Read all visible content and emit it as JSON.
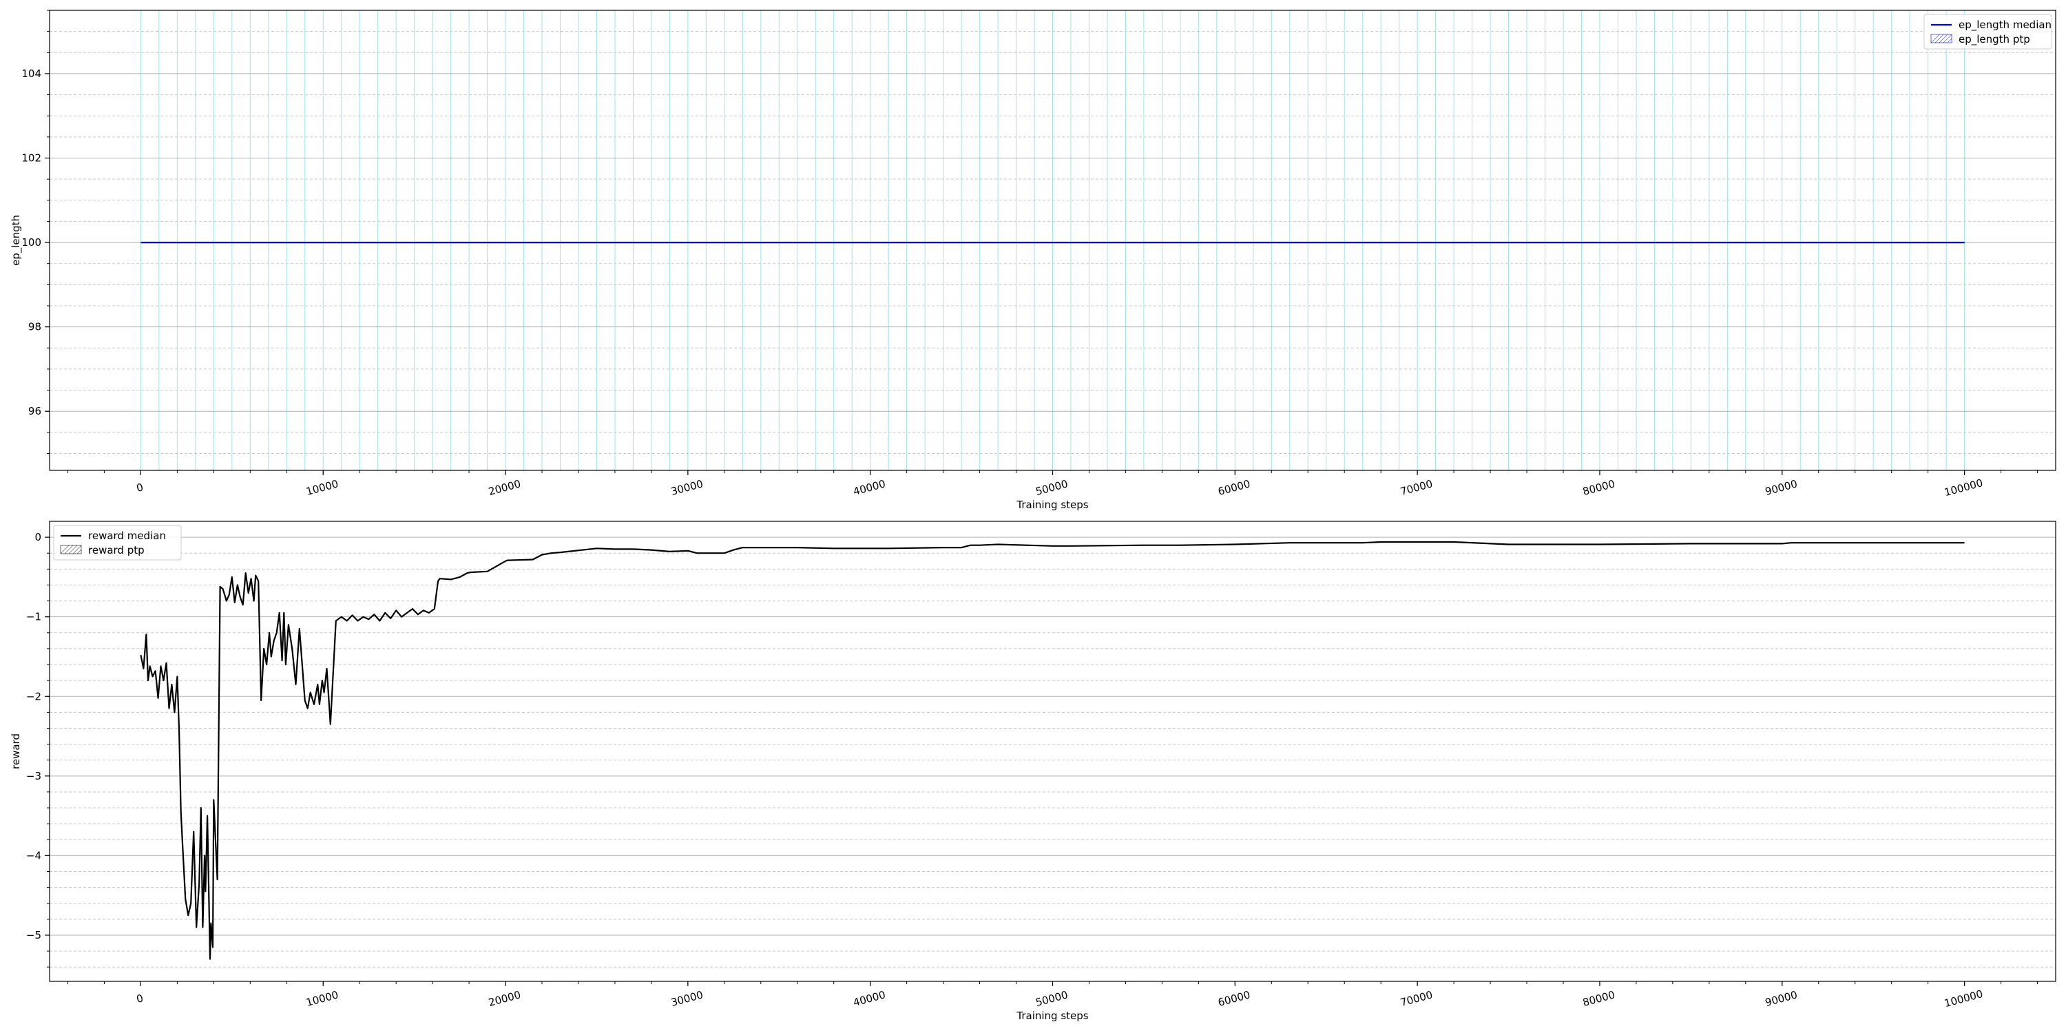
{
  "chart_data": [
    {
      "type": "line",
      "xlabel": "Training steps",
      "ylabel": "ep_length",
      "xlim": [
        -5000,
        105000
      ],
      "ylim": [
        94.6,
        105.5
      ],
      "xticks": [
        0,
        10000,
        20000,
        30000,
        40000,
        50000,
        60000,
        70000,
        80000,
        90000,
        100000
      ],
      "xtick_labels": [
        "0",
        "10000",
        "20000",
        "30000",
        "40000",
        "50000",
        "60000",
        "70000",
        "80000",
        "90000",
        "100000"
      ],
      "yticks": [
        96,
        98,
        100,
        102,
        104
      ],
      "ytick_labels": [
        "96",
        "98",
        "100",
        "102",
        "104"
      ],
      "grid": true,
      "legend_position": "upper right",
      "legend": [
        "ep_length median",
        "ep_length ptp"
      ],
      "series": [
        {
          "name": "ep_length median",
          "color": "#0000cc",
          "x": [
            0,
            100000
          ],
          "y": [
            100,
            100
          ]
        }
      ]
    },
    {
      "type": "line",
      "xlabel": "Training steps",
      "ylabel": "reward",
      "xlim": [
        -5000,
        105000
      ],
      "ylim": [
        -5.58,
        0.2
      ],
      "xticks": [
        0,
        10000,
        20000,
        30000,
        40000,
        50000,
        60000,
        70000,
        80000,
        90000,
        100000
      ],
      "xtick_labels": [
        "0",
        "10000",
        "20000",
        "30000",
        "40000",
        "50000",
        "60000",
        "70000",
        "80000",
        "90000",
        "100000"
      ],
      "yticks": [
        -5,
        -4,
        -3,
        -2,
        -1,
        0
      ],
      "ytick_labels": [
        "−5",
        "−4",
        "−3",
        "−2",
        "−1",
        "0"
      ],
      "grid": true,
      "legend_position": "upper left",
      "legend": [
        "reward median",
        "reward ptp"
      ],
      "series": [
        {
          "name": "reward median",
          "color": "#000000",
          "x": [
            0,
            150,
            300,
            400,
            500,
            650,
            800,
            950,
            1100,
            1250,
            1400,
            1550,
            1700,
            1850,
            2000,
            2100,
            2200,
            2300,
            2450,
            2600,
            2750,
            2900,
            3050,
            3200,
            3300,
            3400,
            3500,
            3550,
            3650,
            3800,
            3850,
            3950,
            4000,
            4200,
            4350,
            4500,
            4700,
            4850,
            5000,
            5150,
            5300,
            5450,
            5600,
            5750,
            5900,
            6050,
            6200,
            6300,
            6450,
            6600,
            6750,
            6900,
            7050,
            7150,
            7300,
            7450,
            7600,
            7750,
            7850,
            7950,
            8100,
            8300,
            8500,
            8700,
            8850,
            9000,
            9150,
            9300,
            9500,
            9700,
            9800,
            9950,
            10050,
            10200,
            10400,
            10700,
            11000,
            11300,
            11600,
            11900,
            12200,
            12500,
            12800,
            13100,
            13400,
            13700,
            14000,
            14300,
            14600,
            14900,
            15200,
            15500,
            15800,
            16100,
            16300,
            16400,
            17000,
            17500,
            17900,
            18100,
            19000,
            20000,
            20100,
            21500,
            22000,
            22500,
            23000,
            25000,
            26000,
            27000,
            28000,
            29000,
            30000,
            30500,
            32000,
            32500,
            33000,
            35000,
            36000,
            38000,
            40000,
            41000,
            44000,
            45000,
            45500,
            46000,
            47000,
            50000,
            51000,
            55000,
            57000,
            60000,
            63000,
            64000,
            67000,
            68000,
            72000,
            75000,
            75800,
            80000,
            85000,
            90000,
            90500,
            95000,
            100000
          ],
          "y": [
            -1.48,
            -1.65,
            -1.22,
            -1.8,
            -1.62,
            -1.75,
            -1.68,
            -2.02,
            -1.62,
            -1.8,
            -1.58,
            -2.15,
            -1.85,
            -2.2,
            -1.75,
            -2.4,
            -3.45,
            -3.9,
            -4.55,
            -4.75,
            -4.6,
            -3.7,
            -4.9,
            -4.35,
            -3.4,
            -4.9,
            -4.0,
            -4.45,
            -3.5,
            -5.3,
            -4.85,
            -5.15,
            -3.3,
            -4.3,
            -0.62,
            -0.65,
            -0.8,
            -0.72,
            -0.5,
            -0.82,
            -0.6,
            -0.75,
            -0.85,
            -0.45,
            -0.7,
            -0.52,
            -0.8,
            -0.48,
            -0.55,
            -2.05,
            -1.4,
            -1.6,
            -1.2,
            -1.5,
            -1.3,
            -1.2,
            -0.95,
            -1.55,
            -0.95,
            -1.6,
            -1.1,
            -1.4,
            -1.85,
            -1.15,
            -1.6,
            -2.05,
            -2.15,
            -1.95,
            -2.1,
            -1.85,
            -2.1,
            -1.8,
            -1.95,
            -1.65,
            -2.35,
            -1.05,
            -1.0,
            -1.05,
            -0.98,
            -1.05,
            -1.0,
            -1.03,
            -0.97,
            -1.05,
            -0.95,
            -1.02,
            -0.92,
            -1.0,
            -0.95,
            -0.9,
            -0.97,
            -0.92,
            -0.95,
            -0.9,
            -0.55,
            -0.52,
            -0.53,
            -0.5,
            -0.45,
            -0.44,
            -0.43,
            -0.3,
            -0.29,
            -0.28,
            -0.22,
            -0.2,
            -0.19,
            -0.14,
            -0.15,
            -0.15,
            -0.16,
            -0.18,
            -0.17,
            -0.2,
            -0.2,
            -0.16,
            -0.13,
            -0.13,
            -0.13,
            -0.14,
            -0.14,
            -0.14,
            -0.13,
            -0.13,
            -0.1,
            -0.1,
            -0.09,
            -0.11,
            -0.11,
            -0.1,
            -0.1,
            -0.09,
            -0.07,
            -0.07,
            -0.07,
            -0.06,
            -0.06,
            -0.09,
            -0.09,
            -0.09,
            -0.08,
            -0.08,
            -0.07,
            -0.07,
            -0.07
          ]
        }
      ]
    }
  ]
}
